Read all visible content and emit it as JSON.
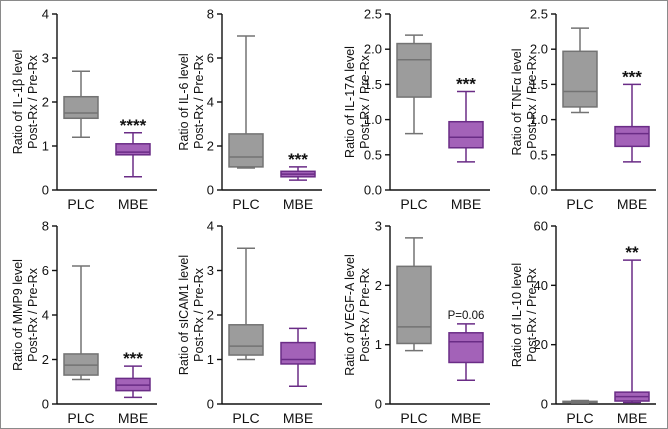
{
  "colors": {
    "plc_fill": "#9c9c9c",
    "plc_stroke": "#737373",
    "mbe_fill": "#a362b8",
    "mbe_stroke": "#6a2c86",
    "axis": "#111111"
  },
  "chart_data": [
    {
      "type": "box",
      "title": "",
      "ylabel": [
        "Ratio of IL-1β level",
        "Post-Rx / Pre-Rx"
      ],
      "ylim": [
        0,
        4
      ],
      "yticks": [
        0,
        1,
        2,
        3,
        4
      ],
      "yticklabels": [
        "0",
        "1",
        "2",
        "3",
        "4"
      ],
      "categories": [
        "PLC",
        "MBE"
      ],
      "series": [
        {
          "name": "PLC",
          "min": 1.2,
          "q1": 1.63,
          "median": 1.75,
          "q3": 2.12,
          "max": 2.7
        },
        {
          "name": "MBE",
          "min": 0.3,
          "q1": 0.8,
          "median": 0.86,
          "q3": 1.05,
          "max": 1.3
        }
      ],
      "annotation": "****"
    },
    {
      "type": "box",
      "title": "",
      "ylabel": [
        "Ratio of IL-6 level",
        "Post-Rx / Pre-Rx"
      ],
      "ylim": [
        0,
        8
      ],
      "yticks": [
        0,
        2,
        4,
        6,
        8
      ],
      "yticklabels": [
        "0",
        "2",
        "4",
        "6",
        "8"
      ],
      "categories": [
        "PLC",
        "MBE"
      ],
      "series": [
        {
          "name": "PLC",
          "min": 1.0,
          "q1": 1.05,
          "median": 1.5,
          "q3": 2.55,
          "max": 7.0
        },
        {
          "name": "MBE",
          "min": 0.45,
          "q1": 0.6,
          "median": 0.72,
          "q3": 0.85,
          "max": 1.05
        }
      ],
      "annotation": "***"
    },
    {
      "type": "box",
      "title": "",
      "ylabel": [
        "Ratio of IL-17A level",
        "Post-Rx / Pre-Rx"
      ],
      "ylim": [
        0,
        2.5
      ],
      "yticks": [
        0,
        0.5,
        1,
        1.5,
        2,
        2.5
      ],
      "yticklabels": [
        "0.0",
        "0.5",
        "1.0",
        "1.5",
        "2.0",
        "2.5"
      ],
      "categories": [
        "PLC",
        "MBE"
      ],
      "series": [
        {
          "name": "PLC",
          "min": 0.8,
          "q1": 1.32,
          "median": 1.85,
          "q3": 2.08,
          "max": 2.2
        },
        {
          "name": "MBE",
          "min": 0.4,
          "q1": 0.6,
          "median": 0.75,
          "q3": 0.97,
          "max": 1.4
        }
      ],
      "annotation": "***"
    },
    {
      "type": "box",
      "title": "",
      "ylabel": [
        "Ratio of TNFα level",
        "Post-Rx / Pre-Rx"
      ],
      "ylim": [
        0,
        2.5
      ],
      "yticks": [
        0,
        0.5,
        1,
        1.5,
        2,
        2.5
      ],
      "yticklabels": [
        "0.0",
        "0.5",
        "1.0",
        "1.5",
        "2.0",
        "2.5"
      ],
      "categories": [
        "PLC",
        "MBE"
      ],
      "series": [
        {
          "name": "PLC",
          "min": 1.1,
          "q1": 1.18,
          "median": 1.4,
          "q3": 1.97,
          "max": 2.3
        },
        {
          "name": "MBE",
          "min": 0.4,
          "q1": 0.62,
          "median": 0.8,
          "q3": 0.9,
          "max": 1.5
        }
      ],
      "annotation": "***"
    },
    {
      "type": "box",
      "title": "",
      "ylabel": [
        "Ratio of MMP9 level",
        "Post-Rx / Pre-Rx"
      ],
      "ylim": [
        0,
        8
      ],
      "yticks": [
        0,
        2,
        4,
        6,
        8
      ],
      "yticklabels": [
        "0",
        "2",
        "4",
        "6",
        "8"
      ],
      "categories": [
        "PLC",
        "MBE"
      ],
      "series": [
        {
          "name": "PLC",
          "min": 1.1,
          "q1": 1.3,
          "median": 1.75,
          "q3": 2.25,
          "max": 6.2
        },
        {
          "name": "MBE",
          "min": 0.3,
          "q1": 0.6,
          "median": 0.85,
          "q3": 1.15,
          "max": 1.7
        }
      ],
      "annotation": "***"
    },
    {
      "type": "box",
      "title": "",
      "ylabel": [
        "Ratio of sICAM1 level",
        "Post-Rx / Pre-Rx"
      ],
      "ylim": [
        0,
        4
      ],
      "yticks": [
        0,
        1,
        2,
        3,
        4
      ],
      "yticklabels": [
        "0",
        "1",
        "2",
        "3",
        "4"
      ],
      "categories": [
        "PLC",
        "MBE"
      ],
      "series": [
        {
          "name": "PLC",
          "min": 1.0,
          "q1": 1.1,
          "median": 1.3,
          "q3": 1.78,
          "max": 3.5
        },
        {
          "name": "MBE",
          "min": 0.4,
          "q1": 0.9,
          "median": 1.0,
          "q3": 1.38,
          "max": 1.7
        }
      ],
      "annotation": ""
    },
    {
      "type": "box",
      "title": "",
      "ylabel": [
        "Ratio of VEGF-A level",
        "Post-Rx / Pre-Rx"
      ],
      "ylim": [
        0,
        3
      ],
      "yticks": [
        0,
        1,
        2,
        3
      ],
      "yticklabels": [
        "0",
        "1",
        "2",
        "3"
      ],
      "categories": [
        "PLC",
        "MBE"
      ],
      "series": [
        {
          "name": "PLC",
          "min": 0.9,
          "q1": 1.02,
          "median": 1.3,
          "q3": 2.32,
          "max": 2.8
        },
        {
          "name": "MBE",
          "min": 0.4,
          "q1": 0.7,
          "median": 1.05,
          "q3": 1.2,
          "max": 1.35
        }
      ],
      "annotation": "P=0.06"
    },
    {
      "type": "box",
      "title": "",
      "ylabel": [
        "Ratio of IL-10 level",
        "Post-Rx / Pre-Rx"
      ],
      "ylim": [
        0,
        60
      ],
      "yticks": [
        0,
        20,
        40,
        60
      ],
      "yticklabels": [
        "0",
        "20",
        "40",
        "60"
      ],
      "categories": [
        "PLC",
        "MBE"
      ],
      "series": [
        {
          "name": "PLC",
          "min": 0.3,
          "q1": 0.4,
          "median": 0.6,
          "q3": 0.9,
          "max": 1.2
        },
        {
          "name": "MBE",
          "min": 0.5,
          "q1": 1.0,
          "median": 2.5,
          "q3": 4.0,
          "max": 48.5
        }
      ],
      "annotation": "**"
    }
  ]
}
